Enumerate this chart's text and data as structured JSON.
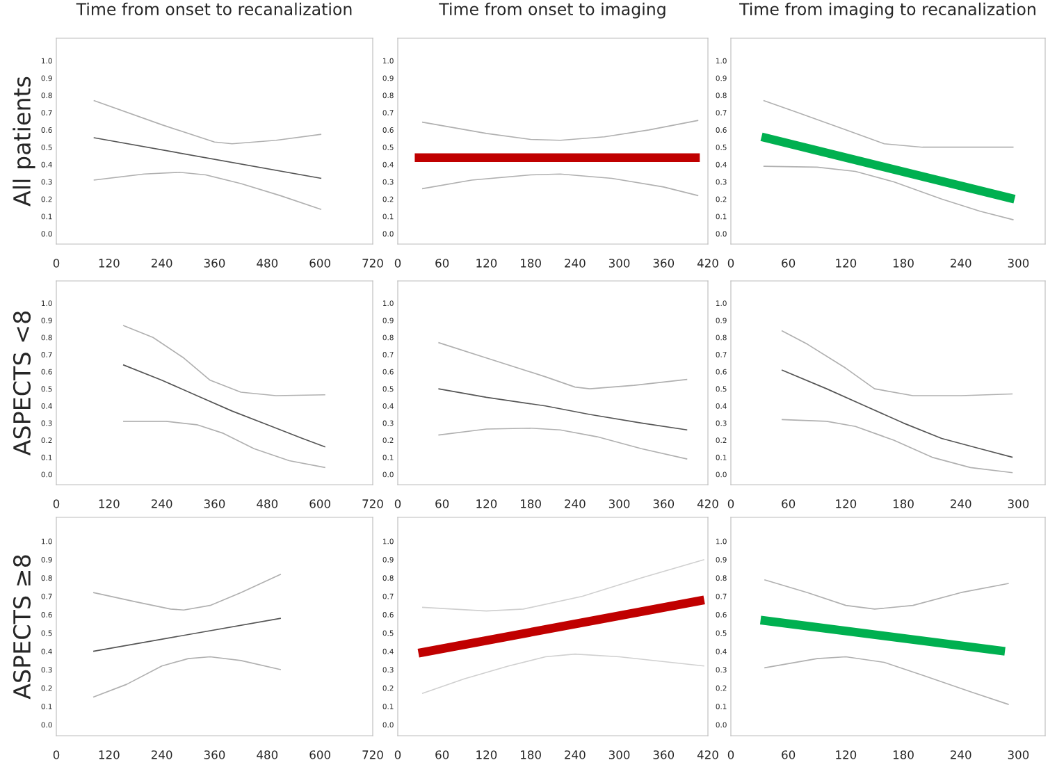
{
  "chart_data": [
    {
      "type": "line",
      "title": "Time from onset to recanalization",
      "ylabel": "All patients",
      "xlim": [
        0,
        720
      ],
      "xticks": [
        0,
        120,
        240,
        360,
        480,
        600,
        720
      ],
      "ylim": [
        -0.06,
        1.13
      ],
      "yticks": [
        {
          "value": 0,
          "label": "0.0"
        },
        {
          "value": 0.1,
          "label": "0.1"
        },
        {
          "value": 0.2,
          "label": "0.2"
        },
        {
          "value": 0.3,
          "label": "0.3"
        },
        {
          "value": 0.4,
          "label": "0.4"
        },
        {
          "value": 0.5,
          "label": "0.5"
        },
        {
          "value": 0.6,
          "label": "0.6"
        },
        {
          "value": 0.7,
          "label": "0.7"
        },
        {
          "value": 0.8,
          "label": "0.8"
        },
        {
          "value": 0.9,
          "label": "0.9"
        },
        {
          "value": 1,
          "label": "1.0"
        }
      ],
      "series": [
        {
          "color": "#b0b0b0",
          "x": [
            85,
            240,
            360,
            400,
            500,
            603
          ],
          "values": [
            0.77,
            0.63,
            0.53,
            0.52,
            0.54,
            0.575
          ]
        },
        {
          "color": "#b0b0b0",
          "x": [
            85,
            200,
            280,
            340,
            420,
            510,
            603
          ],
          "values": [
            0.31,
            0.345,
            0.355,
            0.34,
            0.29,
            0.22,
            0.14
          ]
        },
        {
          "color": "#555555",
          "x": [
            85,
            603
          ],
          "values": [
            0.555,
            0.32
          ]
        }
      ]
    },
    {
      "type": "line",
      "title": "Time from onset to imaging",
      "xlim": [
        0,
        420
      ],
      "xticks": [
        0,
        60,
        120,
        180,
        240,
        300,
        360,
        420
      ],
      "ylim": [
        -0.06,
        1.13
      ],
      "yticks": [
        {
          "value": 0,
          "label": "0.0"
        },
        {
          "value": 0.1,
          "label": "0.1"
        },
        {
          "value": 0.2,
          "label": "0.2"
        },
        {
          "value": 0.3,
          "label": "0.3"
        },
        {
          "value": 0.4,
          "label": "0.4"
        },
        {
          "value": 0.5,
          "label": "0.5"
        },
        {
          "value": 0.6,
          "label": "0.6"
        },
        {
          "value": 0.7,
          "label": "0.7"
        },
        {
          "value": 0.8,
          "label": "0.8"
        },
        {
          "value": 0.9,
          "label": "0.9"
        },
        {
          "value": 1,
          "label": "1.0"
        }
      ],
      "series": [
        {
          "color": "#b0b0b0",
          "x": [
            33,
            120,
            180,
            220,
            280,
            340,
            407
          ],
          "values": [
            0.645,
            0.58,
            0.545,
            0.54,
            0.56,
            0.6,
            0.655
          ]
        },
        {
          "color": "#b0b0b0",
          "x": [
            33,
            100,
            180,
            220,
            290,
            360,
            407
          ],
          "values": [
            0.26,
            0.31,
            0.34,
            0.345,
            0.32,
            0.27,
            0.22
          ]
        },
        {
          "color": "#c00000",
          "x": [
            23,
            409
          ],
          "values": [
            0.44,
            0.44
          ]
        }
      ]
    },
    {
      "type": "line",
      "title": "Time from imaging to recanalization",
      "xlim": [
        0,
        328
      ],
      "xticks": [
        0,
        60,
        120,
        180,
        240,
        300
      ],
      "ylim": [
        -0.06,
        1.13
      ],
      "yticks": [
        {
          "value": 0,
          "label": "0.0"
        },
        {
          "value": 0.1,
          "label": "0.1"
        },
        {
          "value": 0.2,
          "label": "0.2"
        },
        {
          "value": 0.3,
          "label": "0.3"
        },
        {
          "value": 0.4,
          "label": "0.4"
        },
        {
          "value": 0.5,
          "label": "0.5"
        },
        {
          "value": 0.6,
          "label": "0.6"
        },
        {
          "value": 0.7,
          "label": "0.7"
        },
        {
          "value": 0.8,
          "label": "0.8"
        },
        {
          "value": 0.9,
          "label": "0.9"
        },
        {
          "value": 1,
          "label": "1.0"
        }
      ],
      "series": [
        {
          "color": "#b0b0b0",
          "x": [
            34,
            70,
            120,
            160,
            200,
            260,
            295
          ],
          "values": [
            0.77,
            0.7,
            0.6,
            0.52,
            0.5,
            0.5,
            0.5
          ]
        },
        {
          "color": "#b0b0b0",
          "x": [
            34,
            90,
            130,
            170,
            220,
            260,
            295
          ],
          "values": [
            0.39,
            0.385,
            0.36,
            0.3,
            0.2,
            0.13,
            0.08
          ]
        },
        {
          "color": "#00b050",
          "x": [
            32,
            296
          ],
          "values": [
            0.56,
            0.2
          ]
        }
      ]
    },
    {
      "type": "line",
      "ylabel": "ASPECTS <8",
      "xlim": [
        0,
        720
      ],
      "xticks": [
        0,
        120,
        240,
        360,
        480,
        600,
        720
      ],
      "ylim": [
        -0.06,
        1.13
      ],
      "yticks": [
        {
          "value": 0,
          "label": "0.0"
        },
        {
          "value": 0.1,
          "label": "0.1"
        },
        {
          "value": 0.2,
          "label": "0.2"
        },
        {
          "value": 0.3,
          "label": "0.3"
        },
        {
          "value": 0.4,
          "label": "0.4"
        },
        {
          "value": 0.5,
          "label": "0.5"
        },
        {
          "value": 0.6,
          "label": "0.6"
        },
        {
          "value": 0.7,
          "label": "0.7"
        },
        {
          "value": 0.8,
          "label": "0.8"
        },
        {
          "value": 0.9,
          "label": "0.9"
        },
        {
          "value": 1,
          "label": "1.0"
        }
      ],
      "series": [
        {
          "color": "#b0b0b0",
          "x": [
            152,
            220,
            290,
            350,
            420,
            500,
            612
          ],
          "values": [
            0.87,
            0.8,
            0.68,
            0.55,
            0.48,
            0.46,
            0.465
          ]
        },
        {
          "color": "#b0b0b0",
          "x": [
            152,
            250,
            320,
            380,
            450,
            530,
            612
          ],
          "values": [
            0.31,
            0.31,
            0.29,
            0.24,
            0.15,
            0.08,
            0.04
          ]
        },
        {
          "color": "#555555",
          "x": [
            152,
            240,
            320,
            400,
            480,
            560,
            612
          ],
          "values": [
            0.64,
            0.55,
            0.46,
            0.37,
            0.29,
            0.21,
            0.16
          ]
        }
      ]
    },
    {
      "type": "line",
      "xlim": [
        0,
        420
      ],
      "xticks": [
        0,
        60,
        120,
        180,
        240,
        300,
        360,
        420
      ],
      "ylim": [
        -0.06,
        1.13
      ],
      "yticks": [
        {
          "value": 0,
          "label": "0.0"
        },
        {
          "value": 0.1,
          "label": "0.1"
        },
        {
          "value": 0.2,
          "label": "0.2"
        },
        {
          "value": 0.3,
          "label": "0.3"
        },
        {
          "value": 0.4,
          "label": "0.4"
        },
        {
          "value": 0.5,
          "label": "0.5"
        },
        {
          "value": 0.6,
          "label": "0.6"
        },
        {
          "value": 0.7,
          "label": "0.7"
        },
        {
          "value": 0.8,
          "label": "0.8"
        },
        {
          "value": 0.9,
          "label": "0.9"
        },
        {
          "value": 1,
          "label": "1.0"
        }
      ],
      "series": [
        {
          "color": "#b0b0b0",
          "x": [
            55,
            120,
            200,
            240,
            260,
            320,
            392
          ],
          "values": [
            0.77,
            0.68,
            0.57,
            0.51,
            0.5,
            0.52,
            0.555
          ]
        },
        {
          "color": "#b0b0b0",
          "x": [
            55,
            120,
            180,
            220,
            270,
            330,
            392
          ],
          "values": [
            0.23,
            0.265,
            0.27,
            0.26,
            0.22,
            0.15,
            0.09
          ]
        },
        {
          "color": "#555555",
          "x": [
            55,
            120,
            200,
            260,
            330,
            392
          ],
          "values": [
            0.5,
            0.45,
            0.4,
            0.35,
            0.3,
            0.26
          ]
        }
      ]
    },
    {
      "type": "line",
      "xlim": [
        0,
        328
      ],
      "xticks": [
        0,
        60,
        120,
        180,
        240,
        300
      ],
      "ylim": [
        -0.06,
        1.13
      ],
      "yticks": [
        {
          "value": 0,
          "label": "0.0"
        },
        {
          "value": 0.1,
          "label": "0.1"
        },
        {
          "value": 0.2,
          "label": "0.2"
        },
        {
          "value": 0.3,
          "label": "0.3"
        },
        {
          "value": 0.4,
          "label": "0.4"
        },
        {
          "value": 0.5,
          "label": "0.5"
        },
        {
          "value": 0.6,
          "label": "0.6"
        },
        {
          "value": 0.7,
          "label": "0.7"
        },
        {
          "value": 0.8,
          "label": "0.8"
        },
        {
          "value": 0.9,
          "label": "0.9"
        },
        {
          "value": 1,
          "label": "1.0"
        }
      ],
      "series": [
        {
          "color": "#b0b0b0",
          "x": [
            53,
            80,
            120,
            150,
            190,
            240,
            294
          ],
          "values": [
            0.84,
            0.76,
            0.62,
            0.5,
            0.46,
            0.46,
            0.47
          ]
        },
        {
          "color": "#b0b0b0",
          "x": [
            53,
            100,
            130,
            170,
            210,
            250,
            294
          ],
          "values": [
            0.32,
            0.31,
            0.28,
            0.2,
            0.1,
            0.04,
            0.01
          ]
        },
        {
          "color": "#555555",
          "x": [
            53,
            100,
            140,
            180,
            220,
            260,
            294
          ],
          "values": [
            0.61,
            0.5,
            0.4,
            0.3,
            0.21,
            0.15,
            0.1
          ]
        }
      ]
    },
    {
      "type": "line",
      "ylabel": "ASPECTS ≥8",
      "xlim": [
        0,
        720
      ],
      "xticks": [
        0,
        120,
        240,
        360,
        480,
        600,
        720
      ],
      "ylim": [
        -0.06,
        1.13
      ],
      "yticks": [
        {
          "value": 0,
          "label": "0.0"
        },
        {
          "value": 0.1,
          "label": "0.1"
        },
        {
          "value": 0.2,
          "label": "0.2"
        },
        {
          "value": 0.3,
          "label": "0.3"
        },
        {
          "value": 0.4,
          "label": "0.4"
        },
        {
          "value": 0.5,
          "label": "0.5"
        },
        {
          "value": 0.6,
          "label": "0.6"
        },
        {
          "value": 0.7,
          "label": "0.7"
        },
        {
          "value": 0.8,
          "label": "0.8"
        },
        {
          "value": 0.9,
          "label": "0.9"
        },
        {
          "value": 1,
          "label": "1.0"
        }
      ],
      "series": [
        {
          "color": "#b0b0b0",
          "x": [
            84,
            180,
            260,
            290,
            350,
            420,
            511
          ],
          "values": [
            0.72,
            0.67,
            0.63,
            0.625,
            0.65,
            0.72,
            0.82
          ]
        },
        {
          "color": "#b0b0b0",
          "x": [
            84,
            160,
            240,
            300,
            350,
            420,
            511
          ],
          "values": [
            0.15,
            0.22,
            0.32,
            0.36,
            0.37,
            0.35,
            0.3
          ]
        },
        {
          "color": "#555555",
          "x": [
            84,
            511
          ],
          "values": [
            0.4,
            0.58
          ]
        }
      ]
    },
    {
      "type": "line",
      "xlim": [
        0,
        420
      ],
      "xticks": [
        0,
        60,
        120,
        180,
        240,
        300,
        360,
        420
      ],
      "ylim": [
        -0.06,
        1.13
      ],
      "yticks": [
        {
          "value": 0,
          "label": "0.0"
        },
        {
          "value": 0.1,
          "label": "0.1"
        },
        {
          "value": 0.2,
          "label": "0.2"
        },
        {
          "value": 0.3,
          "label": "0.3"
        },
        {
          "value": 0.4,
          "label": "0.4"
        },
        {
          "value": 0.5,
          "label": "0.5"
        },
        {
          "value": 0.6,
          "label": "0.6"
        },
        {
          "value": 0.7,
          "label": "0.7"
        },
        {
          "value": 0.8,
          "label": "0.8"
        },
        {
          "value": 0.9,
          "label": "0.9"
        },
        {
          "value": 1,
          "label": "1.0"
        }
      ],
      "series": [
        {
          "color": "#d0d0d0",
          "x": [
            33,
            120,
            170,
            250,
            330,
            415
          ],
          "values": [
            0.64,
            0.62,
            0.63,
            0.7,
            0.8,
            0.9
          ]
        },
        {
          "color": "#d0d0d0",
          "x": [
            33,
            90,
            150,
            200,
            240,
            300,
            415
          ],
          "values": [
            0.17,
            0.25,
            0.32,
            0.37,
            0.385,
            0.37,
            0.32
          ]
        },
        {
          "color": "#c00000",
          "x": [
            28,
            415
          ],
          "values": [
            0.39,
            0.68
          ]
        }
      ]
    },
    {
      "type": "line",
      "xlim": [
        0,
        328
      ],
      "xticks": [
        0,
        60,
        120,
        180,
        240,
        300
      ],
      "ylim": [
        -0.06,
        1.13
      ],
      "yticks": [
        {
          "value": 0,
          "label": "0.0"
        },
        {
          "value": 0.1,
          "label": "0.1"
        },
        {
          "value": 0.2,
          "label": "0.2"
        },
        {
          "value": 0.3,
          "label": "0.3"
        },
        {
          "value": 0.4,
          "label": "0.4"
        },
        {
          "value": 0.5,
          "label": "0.5"
        },
        {
          "value": 0.6,
          "label": "0.6"
        },
        {
          "value": 0.7,
          "label": "0.7"
        },
        {
          "value": 0.8,
          "label": "0.8"
        },
        {
          "value": 0.9,
          "label": "0.9"
        },
        {
          "value": 1,
          "label": "1.0"
        }
      ],
      "series": [
        {
          "color": "#b0b0b0",
          "x": [
            35,
            80,
            120,
            150,
            190,
            240,
            290
          ],
          "values": [
            0.79,
            0.72,
            0.65,
            0.63,
            0.65,
            0.72,
            0.77
          ]
        },
        {
          "color": "#b0b0b0",
          "x": [
            35,
            90,
            120,
            160,
            200,
            250,
            290
          ],
          "values": [
            0.31,
            0.36,
            0.37,
            0.34,
            0.27,
            0.18,
            0.11
          ]
        },
        {
          "color": "#00b050",
          "x": [
            31,
            286
          ],
          "values": [
            0.57,
            0.4
          ]
        }
      ]
    }
  ]
}
